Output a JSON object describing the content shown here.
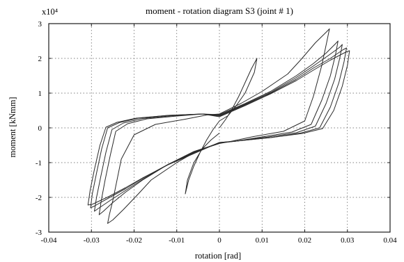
{
  "chart_data": {
    "type": "line",
    "title": "moment - rotation diagram S3 (joint # 1)",
    "xlabel": "rotation [rad]",
    "ylabel": "moment [kNmm]",
    "y_multiplier_label": "x10⁴",
    "xlim": [
      -0.04,
      0.04
    ],
    "ylim": [
      -3,
      3
    ],
    "x_ticks": [
      -0.04,
      -0.03,
      -0.02,
      -0.01,
      0,
      0.01,
      0.02,
      0.03,
      0.04
    ],
    "x_tick_labels": [
      "-0.04",
      "-0.03",
      "-0.02",
      "-0.01",
      "0",
      "0.01",
      "0.02",
      "0.03",
      "0.04"
    ],
    "y_ticks": [
      -3,
      -2,
      -1,
      0,
      1,
      2,
      3
    ],
    "y_tick_labels": [
      "-3",
      "-2",
      "-1",
      "0",
      "1",
      "2",
      "3"
    ],
    "grid": true,
    "legend": "none",
    "series": [
      {
        "x": [
          0,
          0.0015,
          0.003,
          0.0045,
          0.006,
          0.0075,
          0.0088,
          0.0082,
          0.006,
          0.004,
          0.002,
          0,
          -0.0015,
          -0.003,
          -0.0045,
          -0.006,
          -0.0072,
          -0.008,
          -0.0075,
          -0.006,
          -0.004,
          -0.002,
          0
        ],
        "y": [
          0,
          0.25,
          0.55,
          0.9,
          1.3,
          1.7,
          2.0,
          1.6,
          1.0,
          0.65,
          0.35,
          0.2,
          -0.05,
          -0.35,
          -0.7,
          -1.1,
          -1.5,
          -1.9,
          -1.5,
          -1.0,
          -0.6,
          -0.35,
          -0.15
        ]
      },
      {
        "x": [
          0,
          0.005,
          0.01,
          0.016,
          0.019,
          0.0225,
          0.025,
          0.0258,
          0.0252,
          0.024,
          0.022,
          0.02,
          0.015,
          0.008,
          0.003,
          0,
          -0.005,
          -0.01,
          -0.016,
          -0.019,
          -0.0225,
          -0.025,
          -0.0262,
          -0.0258,
          -0.025,
          -0.024,
          -0.023,
          -0.02,
          -0.015,
          -0.008,
          -0.003,
          0
        ],
        "y": [
          0.4,
          0.7,
          1.05,
          1.55,
          1.95,
          2.45,
          2.75,
          2.85,
          2.5,
          1.8,
          0.9,
          0.2,
          -0.1,
          -0.25,
          -0.38,
          -0.45,
          -0.65,
          -1.0,
          -1.5,
          -1.9,
          -2.35,
          -2.65,
          -2.75,
          -2.5,
          -2.1,
          -1.5,
          -0.9,
          -0.2,
          0.1,
          0.25,
          0.37,
          0.4
        ]
      },
      {
        "x": [
          0,
          0.006,
          0.012,
          0.018,
          0.022,
          0.025,
          0.0272,
          0.0278,
          0.0272,
          0.026,
          0.024,
          0.0215,
          0.017,
          0.01,
          0.004,
          0,
          -0.006,
          -0.012,
          -0.018,
          -0.022,
          -0.025,
          -0.0272,
          -0.0282,
          -0.0277,
          -0.0268,
          -0.0256,
          -0.0243,
          -0.0215,
          -0.017,
          -0.01,
          -0.004,
          0
        ],
        "y": [
          0.38,
          0.7,
          1.05,
          1.5,
          1.85,
          2.15,
          2.42,
          2.5,
          2.1,
          1.5,
          0.8,
          0.1,
          -0.12,
          -0.26,
          -0.38,
          -0.44,
          -0.68,
          -1.05,
          -1.5,
          -1.85,
          -2.15,
          -2.4,
          -2.5,
          -2.1,
          -1.5,
          -0.8,
          -0.1,
          0.12,
          0.26,
          0.34,
          0.4,
          0.38
        ]
      },
      {
        "x": [
          0,
          0.006,
          0.012,
          0.018,
          0.022,
          0.0255,
          0.0282,
          0.0288,
          0.0282,
          0.027,
          0.025,
          0.0225,
          0.018,
          0.011,
          0.004,
          0,
          -0.006,
          -0.012,
          -0.018,
          -0.022,
          -0.0255,
          -0.0284,
          -0.0293,
          -0.0288,
          -0.0278,
          -0.0266,
          -0.0252,
          -0.0225,
          -0.018,
          -0.011,
          -0.004,
          0
        ],
        "y": [
          0.36,
          0.68,
          1.02,
          1.45,
          1.78,
          2.08,
          2.32,
          2.4,
          2.0,
          1.4,
          0.7,
          0.05,
          -0.14,
          -0.27,
          -0.38,
          -0.43,
          -0.7,
          -1.05,
          -1.48,
          -1.8,
          -2.08,
          -2.32,
          -2.4,
          -2.0,
          -1.4,
          -0.7,
          -0.05,
          0.14,
          0.27,
          0.35,
          0.4,
          0.36
        ]
      },
      {
        "x": [
          0,
          0.006,
          0.012,
          0.018,
          0.022,
          0.026,
          0.029,
          0.0298,
          0.0292,
          0.028,
          0.026,
          0.0235,
          0.019,
          0.012,
          0.004,
          0,
          -0.006,
          -0.012,
          -0.018,
          -0.022,
          -0.026,
          -0.0293,
          -0.0302,
          -0.0298,
          -0.0288,
          -0.0276,
          -0.0262,
          -0.0235,
          -0.019,
          -0.012,
          -0.004,
          0
        ],
        "y": [
          0.34,
          0.66,
          1.0,
          1.4,
          1.72,
          2.0,
          2.25,
          2.3,
          1.9,
          1.3,
          0.6,
          0.0,
          -0.15,
          -0.28,
          -0.38,
          -0.42,
          -0.72,
          -1.05,
          -1.45,
          -1.75,
          -2.02,
          -2.25,
          -2.3,
          -1.9,
          -1.3,
          -0.6,
          0.0,
          0.15,
          0.28,
          0.36,
          0.4,
          0.34
        ]
      },
      {
        "x": [
          0,
          0.006,
          0.012,
          0.018,
          0.022,
          0.026,
          0.0296,
          0.0305,
          0.03,
          0.0288,
          0.0268,
          0.0242,
          0.0195,
          0.012,
          0.004,
          0,
          -0.006,
          -0.012,
          -0.018,
          -0.022,
          -0.026,
          -0.0298,
          -0.0308,
          -0.0303,
          -0.0293,
          -0.028,
          -0.0266,
          -0.024,
          -0.0195,
          -0.012,
          -0.004,
          0
        ],
        "y": [
          0.32,
          0.64,
          0.98,
          1.36,
          1.66,
          1.95,
          2.18,
          2.22,
          1.8,
          1.2,
          0.5,
          -0.02,
          -0.16,
          -0.28,
          -0.38,
          -0.42,
          -0.74,
          -1.06,
          -1.44,
          -1.72,
          -1.98,
          -2.2,
          -2.22,
          -1.8,
          -1.2,
          -0.5,
          0.02,
          0.16,
          0.28,
          0.36,
          0.4,
          0.32
        ]
      }
    ]
  }
}
